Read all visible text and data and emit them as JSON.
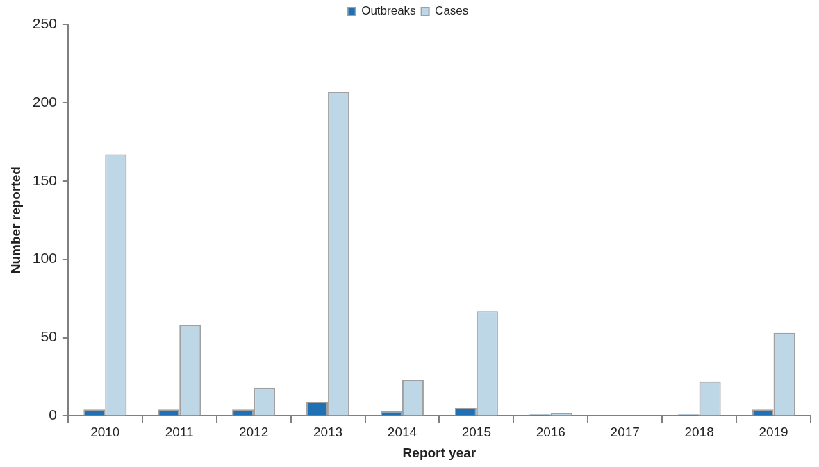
{
  "chart_data": {
    "type": "bar",
    "xlabel": "Report year",
    "ylabel": "Number reported",
    "categories": [
      "2010",
      "2011",
      "2012",
      "2013",
      "2014",
      "2015",
      "2016",
      "2017",
      "2018",
      "2019"
    ],
    "series": [
      {
        "name": "Outbreaks",
        "color": "#1f70b5",
        "values": [
          4,
          4,
          4,
          9,
          3,
          5,
          1,
          0,
          1,
          4
        ]
      },
      {
        "name": "Cases",
        "color": "#bdd7e7",
        "values": [
          167,
          58,
          18,
          207,
          23,
          67,
          2,
          0,
          22,
          53
        ]
      }
    ],
    "ylim": [
      0,
      250
    ],
    "yticks": [
      0,
      50,
      100,
      150,
      200,
      250
    ],
    "grid": false,
    "legend": "top"
  }
}
